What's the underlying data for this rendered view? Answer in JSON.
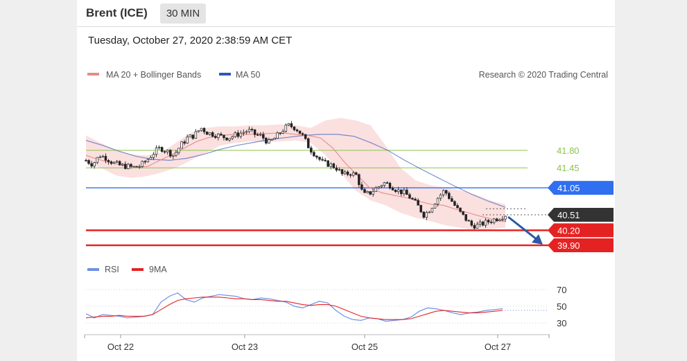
{
  "header": {
    "title": "Brent (ICE)",
    "timeframe": "30 MIN",
    "datetime": "Tuesday, October 27, 2020 2:38:59 AM CET"
  },
  "legend": {
    "ma20": "MA 20 + Bollinger Bands",
    "ma50": "MA 50",
    "copyright": "Research © 2020 Trading Central",
    "rsi": "RSI",
    "ma9": "9MA"
  },
  "colors": {
    "ma20": "#e88a8a",
    "ma50": "#2f57b8",
    "support": "#e52222",
    "resistance_green": "#8bc34a",
    "pivot_blue": "#2f6ff0",
    "current": "#333333",
    "rsi": "#6d8fe6",
    "ma9": "#e52222",
    "band_fill": "#f9d6d6",
    "arrow": "#2a5aa8"
  },
  "chart_data": [
    {
      "type": "candlestick",
      "title": "",
      "x_ticks": [
        "Oct 22",
        "Oct 23",
        "Oct 25",
        "Oct 27"
      ],
      "ylim": [
        39.75,
        42.25
      ],
      "levels": [
        {
          "value": 41.8,
          "label": "41.80",
          "kind": "resistance",
          "color": "#8bc34a"
        },
        {
          "value": 41.45,
          "label": "41.45",
          "kind": "resistance",
          "color": "#8bc34a"
        },
        {
          "value": 41.05,
          "label": "41.05",
          "kind": "pivot",
          "color": "#2f6ff0"
        },
        {
          "value": 40.51,
          "label": "40.51",
          "kind": "current",
          "color": "#333333"
        },
        {
          "value": 40.2,
          "label": "40.20",
          "kind": "support",
          "color": "#e52222"
        },
        {
          "value": 39.9,
          "label": "39.90",
          "kind": "support",
          "color": "#e52222"
        }
      ],
      "price_path": [
        41.6,
        41.52,
        41.7,
        41.65,
        41.55,
        41.5,
        41.48,
        41.46,
        41.49,
        41.6,
        41.75,
        41.85,
        41.78,
        41.7,
        41.9,
        42.05,
        42.1,
        42.25,
        42.15,
        42.12,
        42.08,
        42.05,
        42.1,
        42.15,
        42.2,
        42.12,
        42.08,
        41.95,
        42.05,
        42.2,
        42.3,
        42.25,
        42.1,
        41.85,
        41.7,
        41.55,
        41.52,
        41.45,
        41.3,
        41.35,
        41.3,
        40.9,
        40.95,
        41.05,
        41.15,
        41.1,
        41.0,
        40.95,
        40.85,
        40.7,
        40.5,
        40.65,
        40.85,
        41.0,
        40.8,
        40.6,
        40.45,
        40.3,
        40.3,
        40.35,
        40.4,
        40.45,
        40.51
      ],
      "ma20": [
        41.7,
        41.62,
        41.55,
        41.5,
        41.46,
        41.48,
        41.6,
        41.72,
        41.85,
        41.98,
        42.06,
        42.1,
        42.12,
        42.12,
        42.13,
        42.14,
        42.15,
        42.12,
        42.1,
        42.05,
        41.85,
        41.55,
        41.3,
        41.05,
        40.95,
        40.9,
        40.85,
        40.78,
        40.72,
        40.7,
        40.62,
        40.55,
        40.48,
        40.42,
        40.38
      ],
      "ma50": [
        42.0,
        41.9,
        41.78,
        41.68,
        41.62,
        41.6,
        41.64,
        41.72,
        41.82,
        41.9,
        41.96,
        42.02,
        42.06,
        42.1,
        42.12,
        42.12,
        42.08,
        41.95,
        41.8,
        41.6,
        41.42,
        41.25,
        41.08,
        40.92,
        40.78,
        40.66
      ],
      "bb_upper": [
        42.1,
        41.95,
        41.8,
        41.72,
        41.7,
        41.75,
        41.95,
        42.15,
        42.25,
        42.28,
        42.28,
        42.3,
        42.3,
        42.32,
        42.3,
        42.25,
        42.4,
        42.45,
        42.4,
        42.3,
        41.9,
        41.45,
        41.2,
        41.1,
        41.05,
        41.0,
        40.92,
        40.8,
        40.72
      ],
      "bb_lower": [
        41.55,
        41.45,
        41.3,
        41.25,
        41.28,
        41.35,
        41.45,
        41.6,
        41.75,
        41.9,
        41.95,
        41.98,
        41.96,
        41.98,
        42.0,
        41.95,
        41.7,
        41.35,
        41.0,
        40.8,
        40.7,
        40.55,
        40.45,
        40.38,
        40.3,
        40.25,
        40.2,
        40.22,
        40.25
      ]
    },
    {
      "type": "line",
      "title": "",
      "series": [
        {
          "name": "RSI",
          "values": [
            41,
            36,
            40,
            39,
            38,
            36,
            37,
            38,
            40,
            55,
            62,
            66,
            58,
            55,
            60,
            62,
            64,
            63,
            62,
            59,
            58,
            60,
            59,
            57,
            55,
            50,
            48,
            52,
            56,
            54,
            45,
            38,
            34,
            33,
            36,
            35,
            32,
            33,
            34,
            37,
            44,
            48,
            47,
            45,
            42,
            40,
            42,
            43,
            45,
            46,
            47
          ]
        },
        {
          "name": "9MA",
          "values": [
            36,
            37,
            38,
            38,
            39,
            38,
            38,
            38,
            40,
            46,
            52,
            57,
            59,
            60,
            61,
            61,
            61,
            60,
            59,
            59,
            58,
            58,
            57,
            56,
            56,
            54,
            52,
            51,
            52,
            52,
            50,
            46,
            42,
            38,
            36,
            35,
            34,
            34,
            34,
            35,
            38,
            41,
            44,
            45,
            44,
            43,
            42,
            42,
            43,
            44,
            45
          ]
        }
      ],
      "y_ticks": [
        70,
        50,
        30
      ],
      "ylim": [
        20,
        80
      ],
      "current_value": 45
    }
  ]
}
